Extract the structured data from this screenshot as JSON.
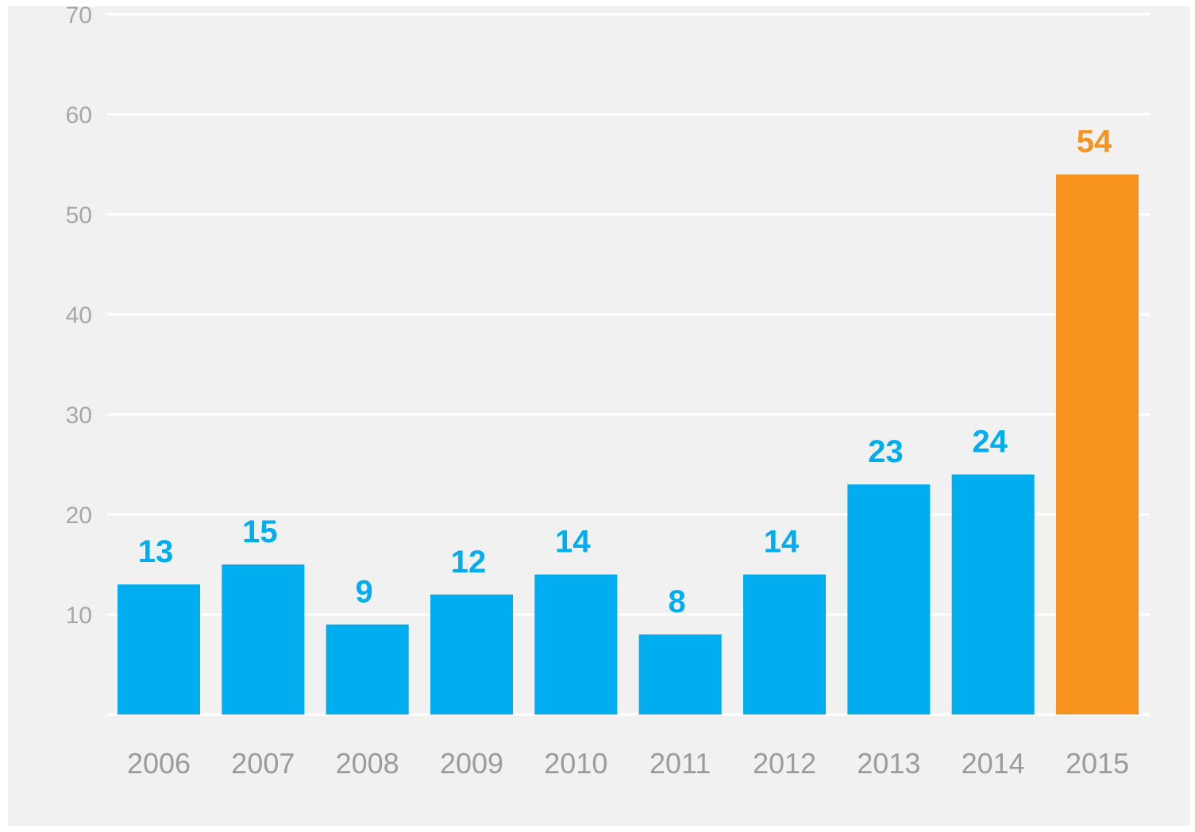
{
  "chart_data": {
    "type": "bar",
    "title": "",
    "xlabel": "",
    "ylabel": "",
    "categories": [
      "2006",
      "2007",
      "2008",
      "2009",
      "2010",
      "2011",
      "2012",
      "2013",
      "2014",
      "2015"
    ],
    "values": [
      13,
      15,
      9,
      12,
      14,
      8,
      14,
      23,
      24,
      54
    ],
    "data_labels": [
      "13",
      "15",
      "9",
      "12",
      "14",
      "8",
      "14",
      "23",
      "24",
      "54"
    ],
    "ylim": [
      0,
      70
    ],
    "y_ticks": [
      "10",
      "20",
      "30",
      "40",
      "50",
      "60",
      "70"
    ],
    "y_tick_values": [
      10,
      20,
      30,
      40,
      50,
      60,
      70
    ],
    "grid": true,
    "legend": "none",
    "colors": {
      "default_bar": "#00aeef",
      "highlight_bar": "#f7941d",
      "highlight_category": "2015",
      "background": "#f1f1f1",
      "gridline": "#ffffff",
      "tick_text": "#a7a7a7"
    }
  }
}
